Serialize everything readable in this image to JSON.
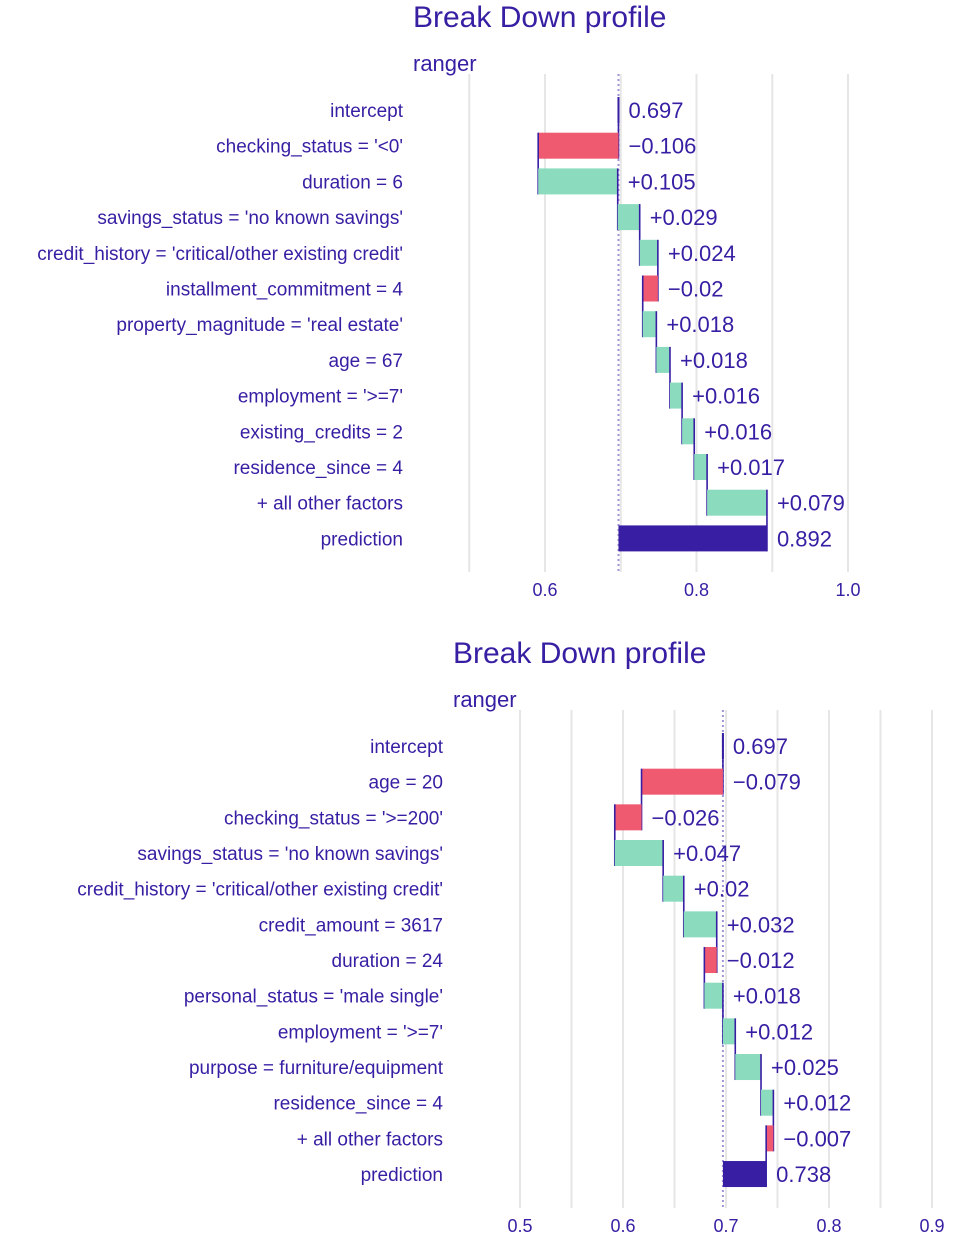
{
  "chart_data": [
    {
      "type": "bar",
      "title": "Break Down profile",
      "subtitle": "ranger",
      "xlim": [
        0.4,
        1.0
      ],
      "ticks": [
        0.6,
        0.8,
        1.0
      ],
      "tick_labels": [
        "0.6",
        "0.8",
        "1.0"
      ],
      "baseline": 0.697,
      "colors": {
        "positive": "#8bdcbe",
        "negative": "#f05a71",
        "prediction": "#371ea3",
        "connector": "#371ea3"
      },
      "rows": [
        {
          "label": "intercept",
          "value": 0.697,
          "start": 0.697,
          "end": 0.697,
          "sign": "intercept",
          "value_label": "0.697"
        },
        {
          "label": "checking_status = '<0'",
          "value": -0.106,
          "start": 0.697,
          "end": 0.591,
          "sign": "negative",
          "value_label": "−0.106"
        },
        {
          "label": "duration = 6",
          "value": 0.105,
          "start": 0.591,
          "end": 0.696,
          "sign": "positive",
          "value_label": "+0.105"
        },
        {
          "label": "savings_status = 'no known savings'",
          "value": 0.029,
          "start": 0.696,
          "end": 0.725,
          "sign": "positive",
          "value_label": "+0.029"
        },
        {
          "label": "credit_history = 'critical/other existing credit'",
          "value": 0.024,
          "start": 0.725,
          "end": 0.749,
          "sign": "positive",
          "value_label": "+0.024"
        },
        {
          "label": "installment_commitment = 4",
          "value": -0.02,
          "start": 0.749,
          "end": 0.729,
          "sign": "negative",
          "value_label": "−0.02"
        },
        {
          "label": "property_magnitude = 'real estate'",
          "value": 0.018,
          "start": 0.729,
          "end": 0.747,
          "sign": "positive",
          "value_label": "+0.018"
        },
        {
          "label": "age = 67",
          "value": 0.018,
          "start": 0.747,
          "end": 0.765,
          "sign": "positive",
          "value_label": "+0.018"
        },
        {
          "label": "employment = '>=7'",
          "value": 0.016,
          "start": 0.765,
          "end": 0.781,
          "sign": "positive",
          "value_label": "+0.016"
        },
        {
          "label": "existing_credits = 2",
          "value": 0.016,
          "start": 0.781,
          "end": 0.797,
          "sign": "positive",
          "value_label": "+0.016"
        },
        {
          "label": "residence_since = 4",
          "value": 0.017,
          "start": 0.797,
          "end": 0.814,
          "sign": "positive",
          "value_label": "+0.017"
        },
        {
          "label": "+ all other factors",
          "value": 0.079,
          "start": 0.814,
          "end": 0.893,
          "sign": "positive",
          "value_label": "+0.079"
        },
        {
          "label": "prediction",
          "value": 0.892,
          "start": 0.697,
          "end": 0.893,
          "sign": "prediction",
          "value_label": "0.892"
        }
      ]
    },
    {
      "type": "bar",
      "title": "Break Down profile",
      "subtitle": "ranger",
      "xlim": [
        0.45,
        0.9
      ],
      "ticks": [
        0.5,
        0.6,
        0.7,
        0.8,
        0.9
      ],
      "tick_labels": [
        "0.5",
        "0.6",
        "0.7",
        "0.8",
        "0.9"
      ],
      "baseline": 0.697,
      "colors": {
        "positive": "#8bdcbe",
        "negative": "#f05a71",
        "prediction": "#371ea3",
        "connector": "#371ea3"
      },
      "rows": [
        {
          "label": "intercept",
          "value": 0.697,
          "start": 0.697,
          "end": 0.697,
          "sign": "intercept",
          "value_label": "0.697"
        },
        {
          "label": "age = 20",
          "value": -0.079,
          "start": 0.697,
          "end": 0.618,
          "sign": "negative",
          "value_label": "−0.079"
        },
        {
          "label": "checking_status = '>=200'",
          "value": -0.026,
          "start": 0.618,
          "end": 0.592,
          "sign": "negative",
          "value_label": "−0.026"
        },
        {
          "label": "savings_status = 'no known savings'",
          "value": 0.047,
          "start": 0.592,
          "end": 0.639,
          "sign": "positive",
          "value_label": "+0.047"
        },
        {
          "label": "credit_history = 'critical/other existing credit'",
          "value": 0.02,
          "start": 0.639,
          "end": 0.659,
          "sign": "positive",
          "value_label": "+0.02"
        },
        {
          "label": "credit_amount = 3617",
          "value": 0.032,
          "start": 0.659,
          "end": 0.691,
          "sign": "positive",
          "value_label": "+0.032"
        },
        {
          "label": "duration = 24",
          "value": -0.012,
          "start": 0.691,
          "end": 0.679,
          "sign": "negative",
          "value_label": "−0.012"
        },
        {
          "label": "personal_status = 'male single'",
          "value": 0.018,
          "start": 0.679,
          "end": 0.697,
          "sign": "positive",
          "value_label": "+0.018"
        },
        {
          "label": "employment = '>=7'",
          "value": 0.012,
          "start": 0.697,
          "end": 0.709,
          "sign": "positive",
          "value_label": "+0.012"
        },
        {
          "label": "purpose = furniture/equipment",
          "value": 0.025,
          "start": 0.709,
          "end": 0.734,
          "sign": "positive",
          "value_label": "+0.025"
        },
        {
          "label": "residence_since = 4",
          "value": 0.012,
          "start": 0.734,
          "end": 0.746,
          "sign": "positive",
          "value_label": "+0.012"
        },
        {
          "label": "+ all other factors",
          "value": -0.007,
          "start": 0.746,
          "end": 0.739,
          "sign": "negative",
          "value_label": "−0.007"
        },
        {
          "label": "prediction",
          "value": 0.738,
          "start": 0.697,
          "end": 0.739,
          "sign": "prediction",
          "value_label": "0.738"
        }
      ]
    }
  ]
}
